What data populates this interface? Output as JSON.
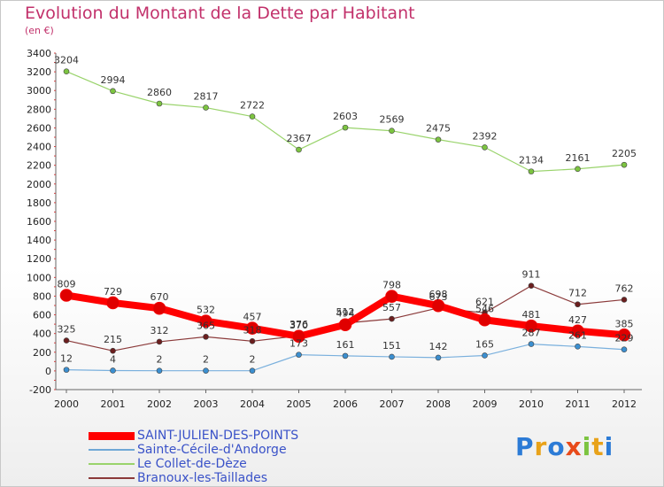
{
  "title": "Evolution du Montant de la Dette par Habitant",
  "subtitle": "(en €)",
  "logo": "Proxiti",
  "chart_data": {
    "type": "line",
    "title": "Evolution du Montant de la Dette par Habitant",
    "subtitle": "(en €)",
    "xlabel": "",
    "ylabel": "",
    "x": [
      "2000",
      "2001",
      "2002",
      "2003",
      "2004",
      "2005",
      "2006",
      "2007",
      "2008",
      "2009",
      "2010",
      "2011",
      "2012"
    ],
    "ylim": [
      -200,
      3400
    ],
    "yticks": [
      -200,
      0,
      200,
      400,
      600,
      800,
      1000,
      1200,
      1400,
      1600,
      1800,
      2000,
      2200,
      2400,
      2600,
      2800,
      3000,
      3200,
      3400
    ],
    "grid": false,
    "legend_position": "bottom-left",
    "series": [
      {
        "name": "SAINT-JULIEN-DES-POINTS",
        "color": "#ff0000",
        "values": [
          809,
          729,
          670,
          532,
          457,
          370,
          494,
          798,
          698,
          546,
          481,
          427,
          385
        ]
      },
      {
        "name": "Sainte-Cécile-d'Andorge",
        "color": "#6fa8d6",
        "values": [
          12,
          4,
          2,
          2,
          2,
          173,
          161,
          151,
          142,
          165,
          287,
          261,
          229
        ]
      },
      {
        "name": "Le Collet-de-Dèze",
        "color": "#99d36b",
        "values": [
          3204,
          2994,
          2860,
          2817,
          2722,
          2367,
          2603,
          2569,
          2475,
          2392,
          2134,
          2161,
          2205
        ]
      },
      {
        "name": "Branoux-les-Taillades",
        "color": "#8b3a3a",
        "values": [
          325,
          215,
          312,
          365,
          318,
          376,
          512,
          557,
          673,
          621,
          911,
          712,
          762
        ]
      }
    ]
  }
}
